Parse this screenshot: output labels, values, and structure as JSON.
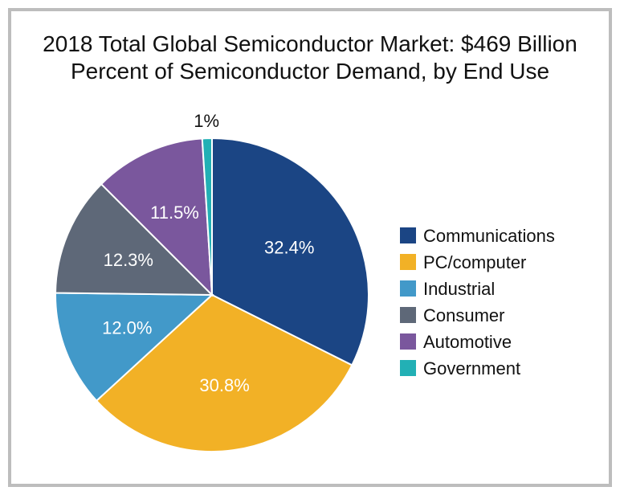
{
  "chart_data": {
    "type": "pie",
    "title": "2018 Total Global Semiconductor Market: $469 Billion",
    "subtitle": "Percent of Semiconductor Demand, by End Use",
    "legend_position": "right",
    "slices": [
      {
        "name": "Communications",
        "value": 32.4,
        "label": "32.4%",
        "color": "#1b4584"
      },
      {
        "name": "PC/computer",
        "value": 30.8,
        "label": "30.8%",
        "color": "#f2b126"
      },
      {
        "name": "Industrial",
        "value": 12.0,
        "label": "12.0%",
        "color": "#4299c9"
      },
      {
        "name": "Consumer",
        "value": 12.3,
        "label": "12.3%",
        "color": "#5e6878"
      },
      {
        "name": "Automotive",
        "value": 11.5,
        "label": "11.5%",
        "color": "#7a579d"
      },
      {
        "name": "Government",
        "value": 1.0,
        "label": "1%",
        "color": "#22b0b5"
      }
    ]
  }
}
